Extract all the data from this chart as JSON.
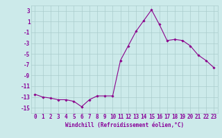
{
  "x": [
    0,
    1,
    2,
    3,
    4,
    5,
    6,
    7,
    8,
    9,
    10,
    11,
    12,
    13,
    14,
    15,
    16,
    17,
    18,
    19,
    20,
    21,
    22,
    23
  ],
  "y": [
    -12.5,
    -13.0,
    -13.2,
    -13.5,
    -13.5,
    -13.8,
    -14.8,
    -13.5,
    -12.8,
    -12.8,
    -12.8,
    -6.2,
    -3.5,
    -0.8,
    1.2,
    3.2,
    0.5,
    -2.5,
    -2.3,
    -2.5,
    -3.5,
    -5.2,
    -6.2,
    -7.5
  ],
  "line_color": "#8B008B",
  "marker": "D",
  "markersize": 1.8,
  "linewidth": 0.8,
  "xlabel": "Windchill (Refroidissement éolien,°C)",
  "xlim": [
    -0.5,
    23.5
  ],
  "ylim": [
    -16,
    4
  ],
  "yticks": [
    3,
    1,
    -1,
    -3,
    -5,
    -7,
    -9,
    -11,
    -13,
    -15
  ],
  "xticks": [
    0,
    1,
    2,
    3,
    4,
    5,
    6,
    7,
    8,
    9,
    10,
    11,
    12,
    13,
    14,
    15,
    16,
    17,
    18,
    19,
    20,
    21,
    22,
    23
  ],
  "bg_color": "#cceaea",
  "grid_color": "#aacccc",
  "font_color": "#880099",
  "xlabel_fontsize": 5.5,
  "tick_fontsize": 5.5
}
